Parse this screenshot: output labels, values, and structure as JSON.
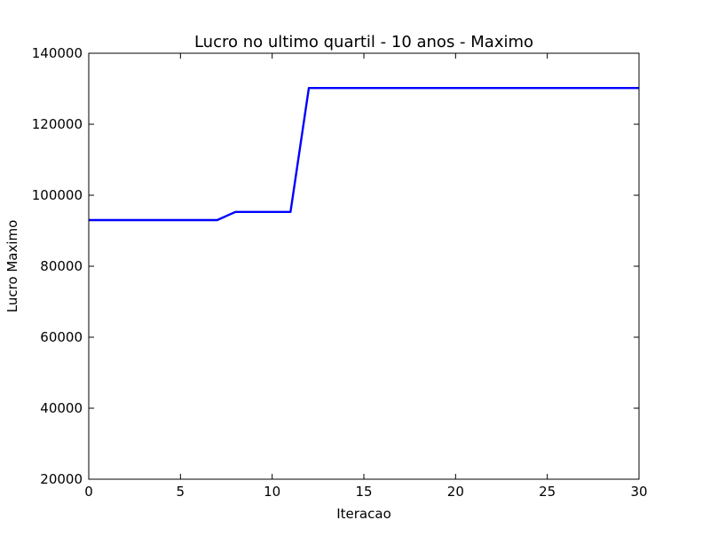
{
  "chart_data": {
    "type": "line",
    "title": "Lucro no ultimo quartil - 10 anos - Maximo",
    "xlabel": "Iteracao",
    "ylabel": "Lucro Maximo",
    "xlim": [
      0,
      30
    ],
    "ylim": [
      20000,
      140000
    ],
    "x_ticks": [
      0,
      5,
      10,
      15,
      20,
      25,
      30
    ],
    "y_ticks": [
      20000,
      40000,
      60000,
      80000,
      100000,
      120000,
      140000
    ],
    "x_tick_labels": [
      "0",
      "5",
      "10",
      "15",
      "20",
      "25",
      "30"
    ],
    "y_tick_labels": [
      "20000",
      "40000",
      "60000",
      "80000",
      "100000",
      "120000",
      "140000"
    ],
    "grid": false,
    "series": [
      {
        "color": "#0000ff",
        "x": [
          0,
          1,
          2,
          3,
          4,
          5,
          6,
          7,
          8,
          9,
          10,
          11,
          12,
          13,
          14,
          15,
          16,
          17,
          18,
          19,
          20,
          21,
          22,
          23,
          24,
          25,
          26,
          27,
          28,
          29,
          30
        ],
        "y": [
          93000,
          93000,
          93000,
          93000,
          93000,
          93000,
          93000,
          93000,
          95300,
          95300,
          95300,
          95300,
          130200,
          130200,
          130200,
          130200,
          130200,
          130200,
          130200,
          130200,
          130200,
          130200,
          130200,
          130200,
          130200,
          130200,
          130200,
          130200,
          130200,
          130200,
          130200
        ]
      }
    ]
  }
}
